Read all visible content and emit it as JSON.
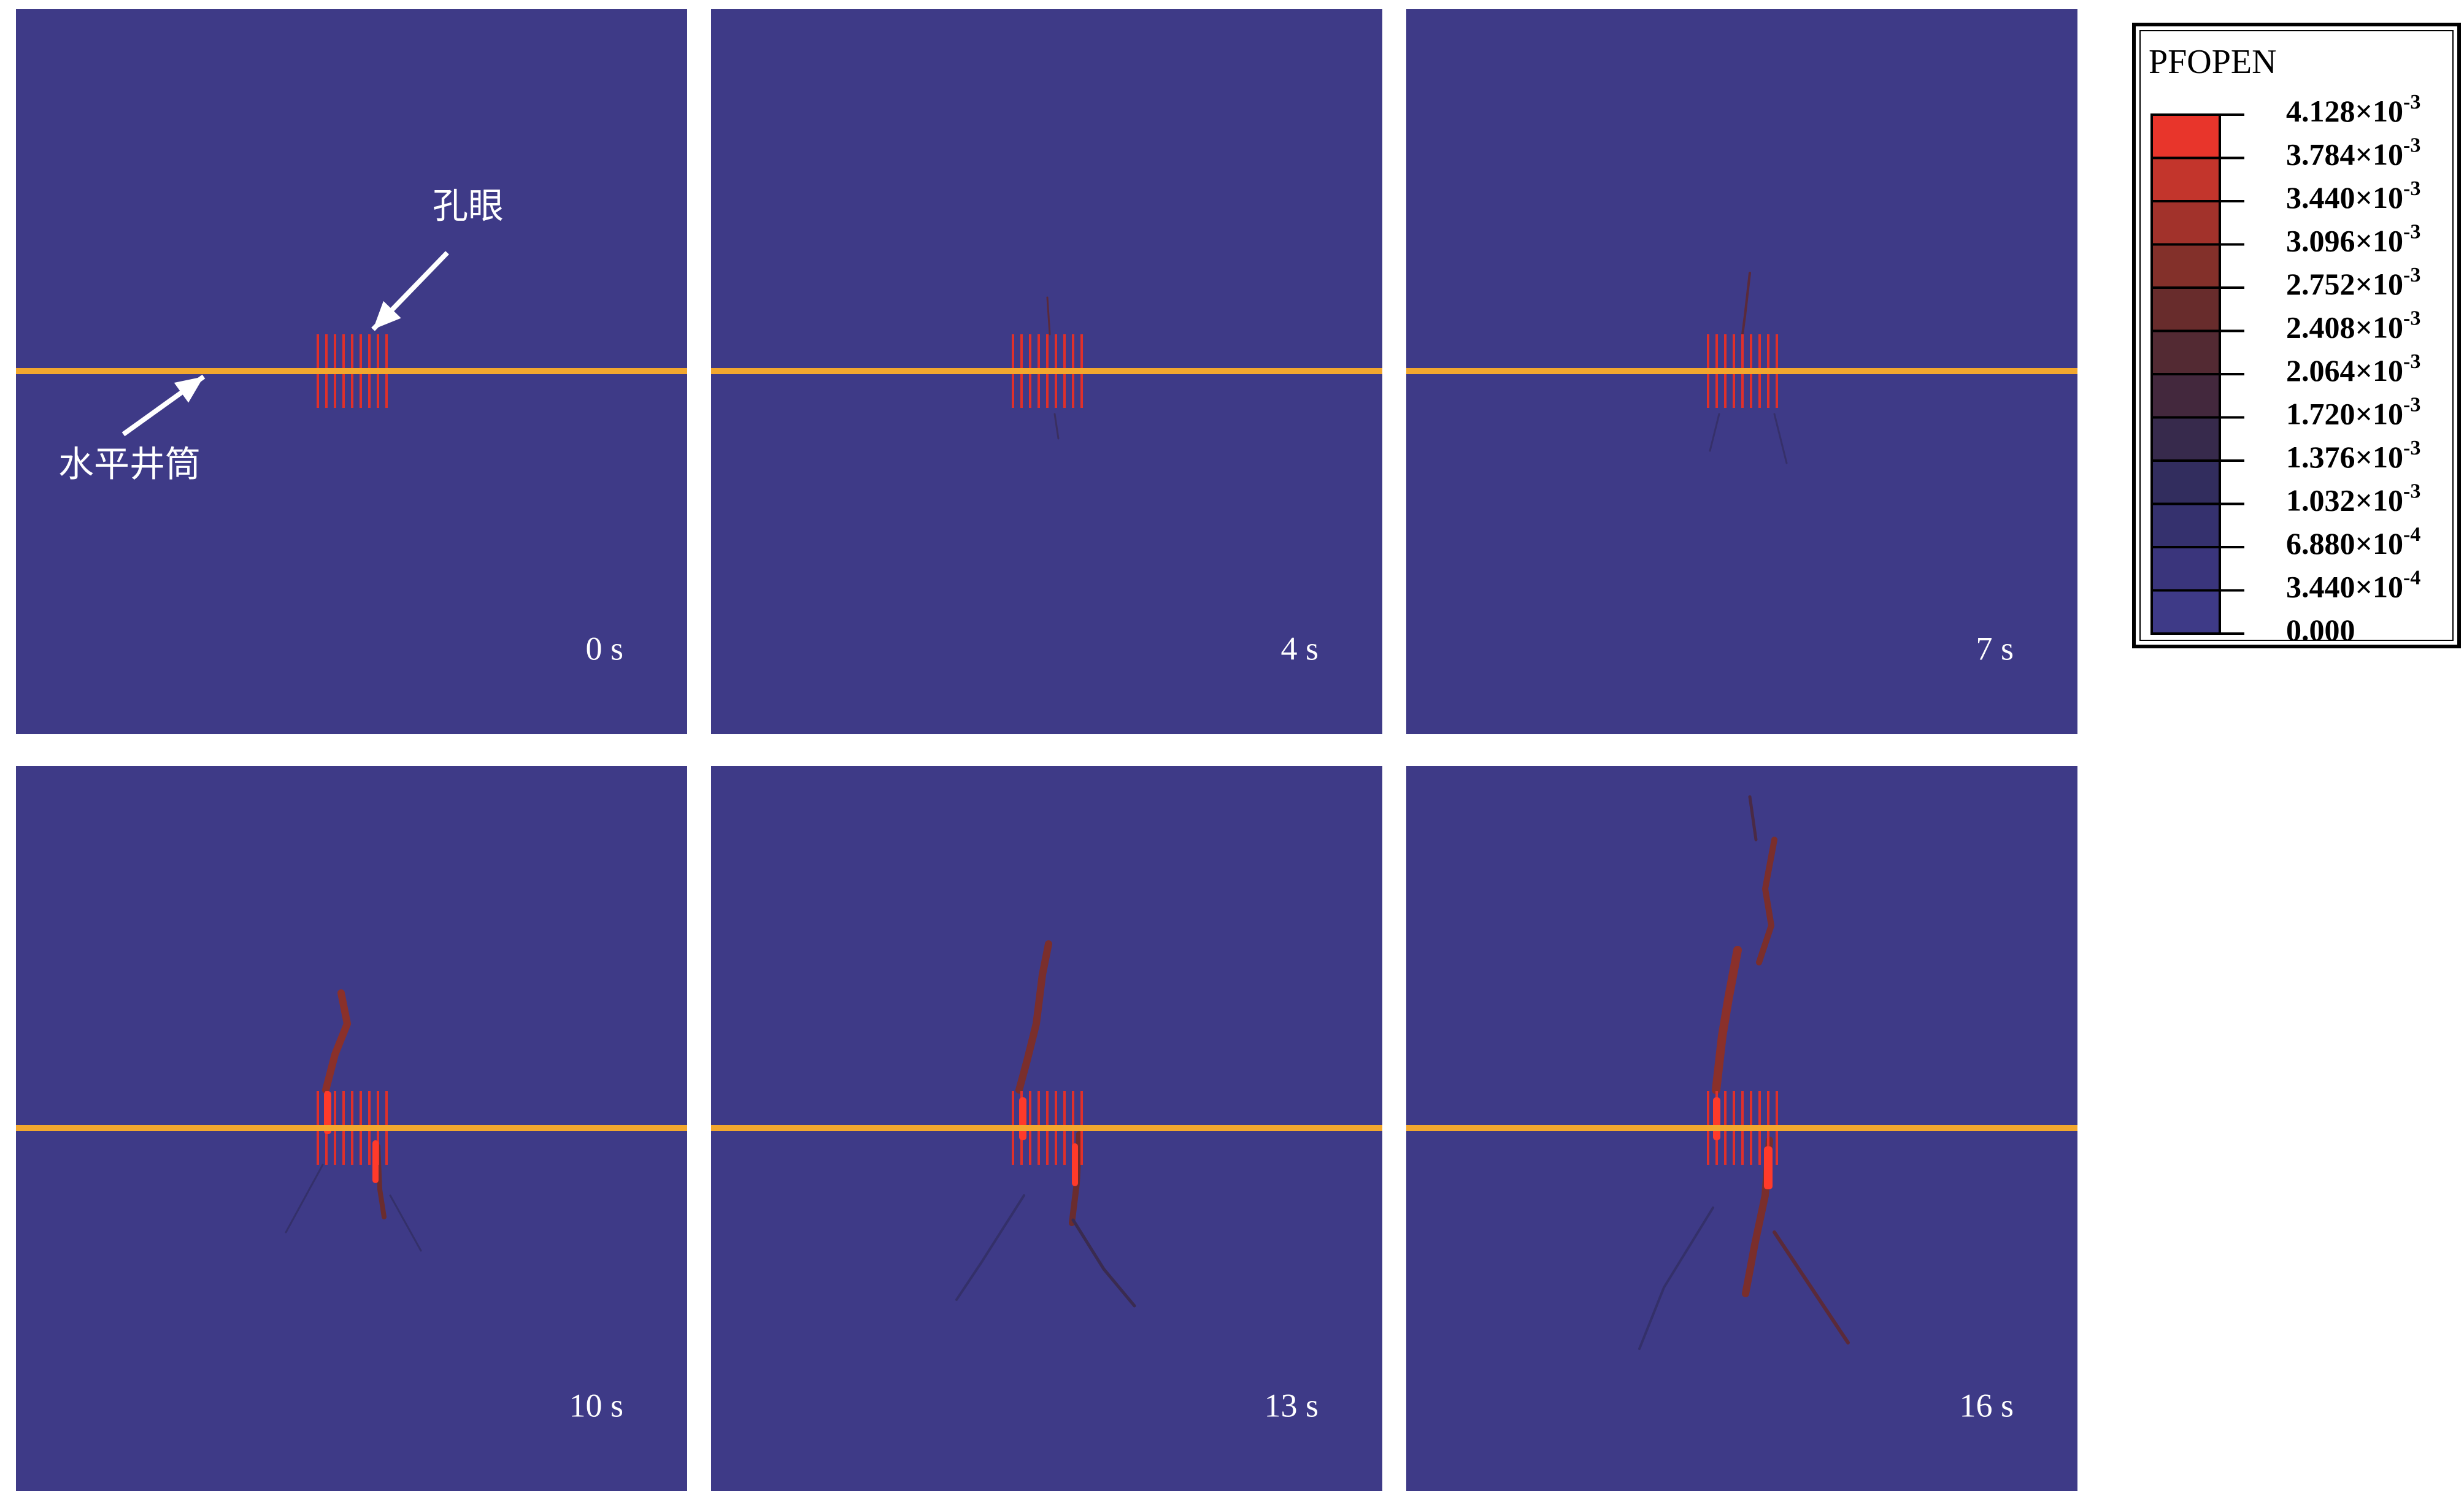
{
  "panels": [
    {
      "time": "0 s"
    },
    {
      "time": "4 s"
    },
    {
      "time": "7 s"
    },
    {
      "time": "10 s"
    },
    {
      "time": "13 s"
    },
    {
      "time": "16 s"
    }
  ],
  "annotations": {
    "perforation": "孔眼",
    "wellbore": "水平井筒"
  },
  "legend": {
    "title": "PFOPEN",
    "levels": [
      {
        "base": "4.128×10",
        "exp": "-3"
      },
      {
        "base": "3.784×10",
        "exp": "-3"
      },
      {
        "base": "3.440×10",
        "exp": "-3"
      },
      {
        "base": "3.096×10",
        "exp": "-3"
      },
      {
        "base": "2.752×10",
        "exp": "-3"
      },
      {
        "base": "2.408×10",
        "exp": "-3"
      },
      {
        "base": "2.064×10",
        "exp": "-3"
      },
      {
        "base": "1.720×10",
        "exp": "-3"
      },
      {
        "base": "1.376×10",
        "exp": "-3"
      },
      {
        "base": "1.032×10",
        "exp": "-3"
      },
      {
        "base": "6.880×10",
        "exp": "-4"
      },
      {
        "base": "3.440×10",
        "exp": "-4"
      },
      {
        "base": "0.000"
      }
    ],
    "colors": [
      "#e8352b",
      "#c3352c",
      "#a2322b",
      "#83302a",
      "#682c2c",
      "#532a33",
      "#43283d",
      "#372a4c",
      "#322d5e",
      "#35316e",
      "#3a357c",
      "#3e3a87"
    ]
  }
}
